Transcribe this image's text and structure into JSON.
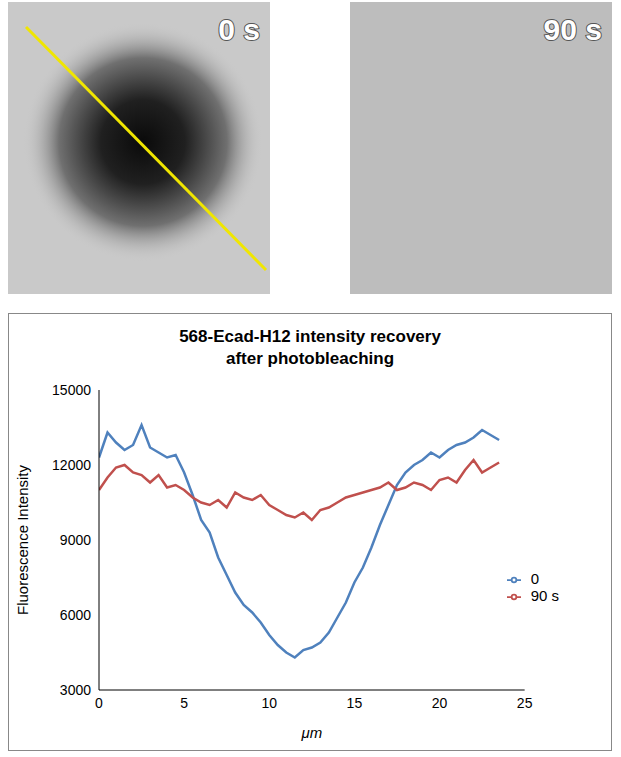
{
  "panels": [
    "0 s",
    "90 s"
  ],
  "chart_data": {
    "type": "line",
    "title": "568-Ecad-H12 intensity recovery after photobleaching",
    "x_label": "μm",
    "y_label": "Fluorescence Intensity",
    "x": [
      0,
      0.5,
      1,
      1.5,
      2,
      2.5,
      3,
      3.5,
      4,
      4.5,
      5,
      5.5,
      6,
      6.5,
      7,
      7.5,
      8,
      8.5,
      9,
      9.5,
      10,
      10.5,
      11,
      11.5,
      12,
      12.5,
      13,
      13.5,
      14,
      14.5,
      15,
      15.5,
      16,
      16.5,
      17,
      17.5,
      18,
      18.5,
      19,
      19.5,
      20,
      20.5,
      21,
      21.5,
      22,
      22.5,
      23,
      23.5
    ],
    "series": [
      {
        "name": "0",
        "color": "#4F81BD",
        "values": [
          12300,
          13300,
          12900,
          12600,
          12800,
          13600,
          12700,
          12500,
          12300,
          12400,
          11700,
          10800,
          9800,
          9300,
          8300,
          7600,
          6900,
          6400,
          6100,
          5700,
          5200,
          4800,
          4500,
          4300,
          4600,
          4700,
          4900,
          5300,
          5900,
          6500,
          7300,
          7900,
          8700,
          9600,
          10400,
          11200,
          11700,
          12000,
          12200,
          12500,
          12300,
          12600,
          12800,
          12900,
          13100,
          13400,
          13200,
          13000
        ]
      },
      {
        "name": "90 s",
        "color": "#C0504D",
        "values": [
          11000,
          11500,
          11900,
          12000,
          11700,
          11600,
          11300,
          11600,
          11100,
          11200,
          11000,
          10700,
          10500,
          10400,
          10600,
          10300,
          10900,
          10700,
          10600,
          10800,
          10400,
          10200,
          10000,
          9900,
          10100,
          9800,
          10200,
          10300,
          10500,
          10700,
          10800,
          10900,
          11000,
          11100,
          11300,
          11000,
          11100,
          11300,
          11200,
          11000,
          11400,
          11500,
          11300,
          11800,
          12200,
          11700,
          11900,
          12100
        ]
      }
    ],
    "xlim": [
      0,
      25
    ],
    "xticks": [
      0,
      5,
      10,
      15,
      20,
      25
    ],
    "ylim": [
      3000,
      15000
    ],
    "yticks": [
      3000,
      6000,
      9000,
      12000,
      15000
    ],
    "grid": false,
    "legend": "right"
  }
}
